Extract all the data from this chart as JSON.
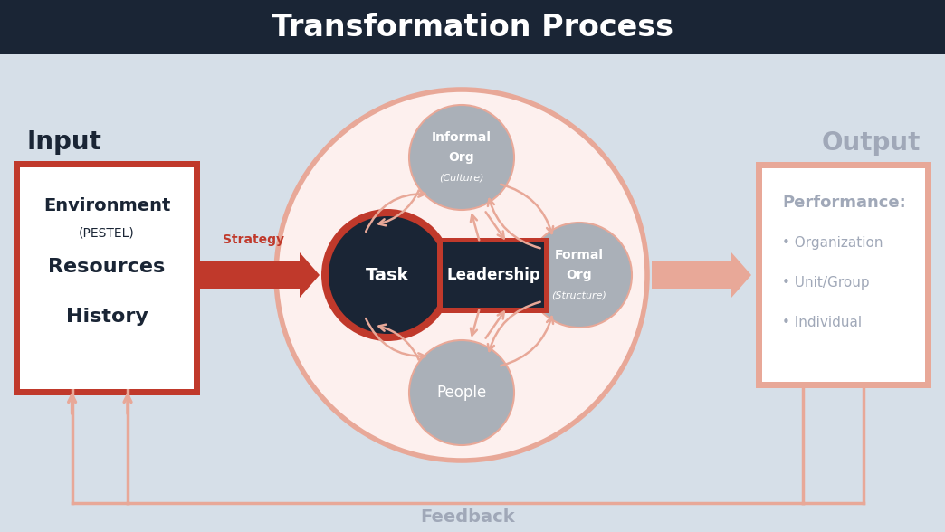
{
  "title": "Transformation Process",
  "title_color": "#ffffff",
  "title_bg": "#1a2535",
  "bg_color": "#d6dfe8",
  "input_label": "Input",
  "output_label": "Output",
  "input_box_border": "#c0392b",
  "input_box_bg": "#ffffff",
  "task_label": "Task",
  "task_fill": "#1a2535",
  "task_border": "#c0392b",
  "leadership_label": "Leadership",
  "leadership_fill": "#1a2535",
  "leadership_border": "#c0392b",
  "people_label": "People",
  "satellite_fill": "#aab0b8",
  "satellite_text": "#ffffff",
  "big_circle_fill": "#fdf0ee",
  "big_circle_border": "#e8a898",
  "strategy_label": "Strategy",
  "strategy_arrow": "#c0392b",
  "feedback_label": "Feedback",
  "feedback_color": "#e8a898",
  "output_box_bg": "#ffffff",
  "output_box_border": "#e8a898",
  "output_title": "Performance:",
  "output_items": [
    "Organization",
    "Unit/Group",
    "Individual"
  ],
  "output_text_color": "#a0a8b8",
  "output_arrow_color": "#e8a898",
  "inner_arrows_color": "#e8a898",
  "dark_navy": "#1a2535"
}
